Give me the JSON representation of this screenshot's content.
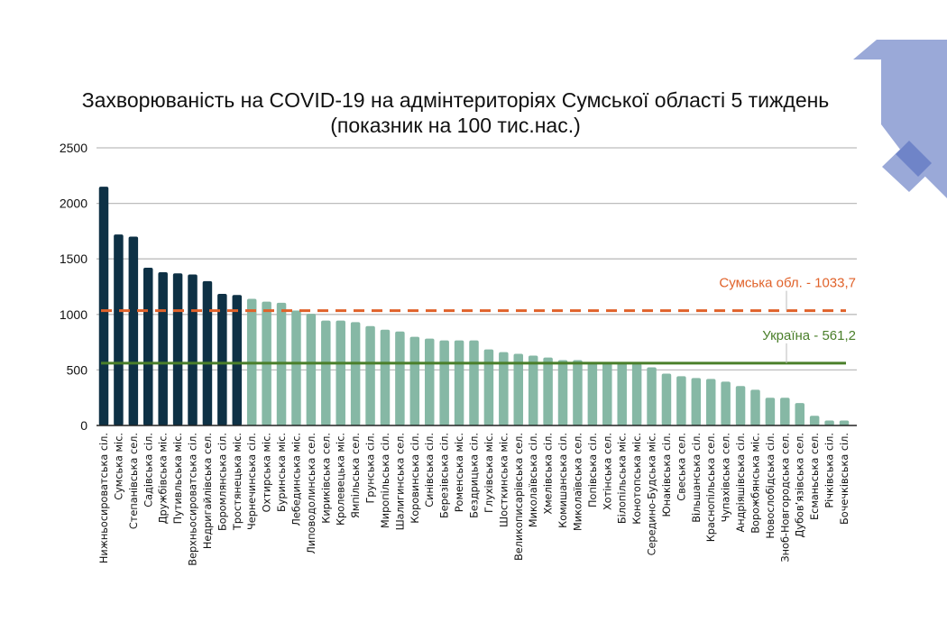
{
  "chart_data": {
    "type": "bar",
    "title": "Захворюваність на COVID-19 на адмінтериторіях Сумської області 5 тиждень",
    "subtitle": "(показник на 100 тис.нас.)",
    "xlabel": "",
    "ylabel": "",
    "ylim": [
      0,
      2500
    ],
    "yticks": [
      0,
      500,
      1000,
      1500,
      2000,
      2500
    ],
    "grid": true,
    "legend": "none",
    "colors": {
      "highlight": "#0e3145",
      "normal": "#86b8a5",
      "oblast_line": "#e0622a",
      "ukraine_line": "#4a7f2a",
      "grid": "#bdbdbd"
    },
    "highlight_count": 10,
    "categories": [
      "Нижньосироватська сіл.",
      "Сумська міс.",
      "Степанівська сел.",
      "Садівська сіл.",
      "Дружбівська міс.",
      "Путивльська міс.",
      "Верхньосироватська сіл.",
      "Недригайлівська сел.",
      "Боромлянська сіл.",
      "Тростянецька міс.",
      "Чернечинська сіл.",
      "Охтирська міс.",
      "Буринська міс.",
      "Лебединська міс.",
      "Липоводолинська сел.",
      "Кириківська сел.",
      "Кролевецька міс.",
      "Ямпільська сел.",
      "Грунська сіл.",
      "Миропільська сіл.",
      "Шалигинська сел.",
      "Коровинська сіл.",
      "Синівська сіл.",
      "Березівська сіл.",
      "Роменська міс.",
      "Бездрицька сіл.",
      "Глухівська міс.",
      "Шосткинська міс.",
      "Великописарівська сел.",
      "Миколаївська сіл.",
      "Хмелівська сіл.",
      "Комишанська сіл.",
      "Миколаївська сел.",
      "Попівська сіл.",
      "Хотінська сел.",
      "Білопільська міс.",
      "Конотопська міс.",
      "Середино-Будська міс.",
      "Юнаківська сіл.",
      "Свеська сел.",
      "Вільшанська сіл.",
      "Краснопільська сел.",
      "Чупахівська сел.",
      "Андріяшівська сіл.",
      "Ворожбянська міс.",
      "Новослобідська сіл.",
      "Зноб-Новгородська сел.",
      "Дубов’язівська сел.",
      "Есманьська сел.",
      "Річківська сіл.",
      "Бочечківська сіл."
    ],
    "values": [
      2150,
      1720,
      1700,
      1420,
      1380,
      1370,
      1360,
      1300,
      1185,
      1175,
      1140,
      1115,
      1105,
      1035,
      1005,
      945,
      945,
      930,
      895,
      862,
      846,
      798,
      782,
      766,
      766,
      766,
      685,
      661,
      645,
      629,
      612,
      588,
      588,
      564,
      564,
      564,
      556,
      524,
      467,
      443,
      427,
      419,
      395,
      355,
      322,
      250,
      250,
      202,
      87,
      45,
      45
    ],
    "reference_lines": [
      {
        "name": "Сумська обл.",
        "value": 1033.7,
        "label": "Сумська обл. - 1033,7",
        "style": "dashed",
        "color": "#e0622a"
      },
      {
        "name": "Україна",
        "value": 561.2,
        "label": "Україна - 561,2",
        "style": "solid",
        "color": "#4a7f2a"
      }
    ]
  }
}
